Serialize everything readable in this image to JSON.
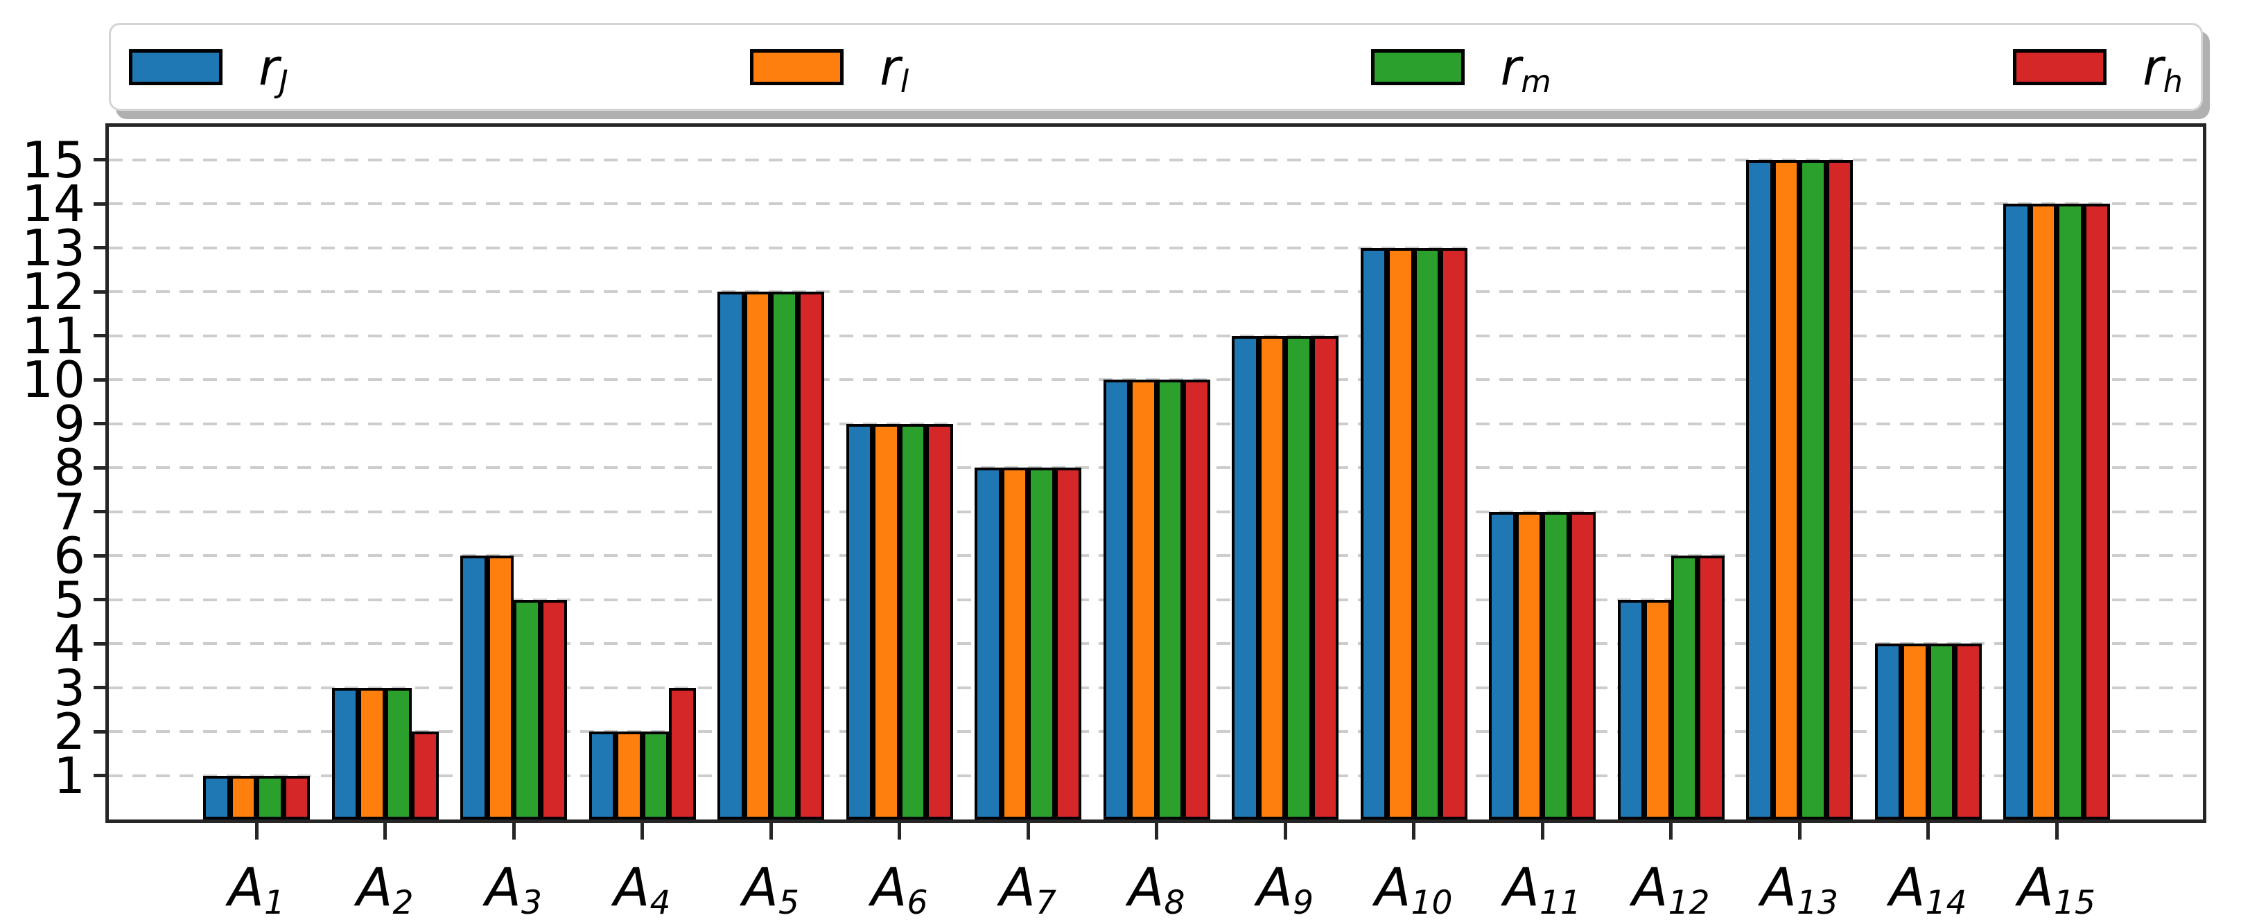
{
  "chart_data": {
    "type": "bar",
    "title": "",
    "xlabel": "",
    "ylabel": "",
    "categories": [
      "A_1",
      "A_2",
      "A_3",
      "A_4",
      "A_5",
      "A_6",
      "A_7",
      "A_8",
      "A_9",
      "A_10",
      "A_11",
      "A_12",
      "A_13",
      "A_14",
      "A_15"
    ],
    "series": [
      {
        "name": "r_J",
        "color": "#1f77b4",
        "values": [
          1,
          3,
          6,
          2,
          12,
          9,
          8,
          10,
          11,
          13,
          7,
          5,
          15,
          4,
          14
        ]
      },
      {
        "name": "r_l",
        "color": "#ff7f0e",
        "values": [
          1,
          3,
          6,
          2,
          12,
          9,
          8,
          10,
          11,
          13,
          7,
          5,
          15,
          4,
          14
        ]
      },
      {
        "name": "r_m",
        "color": "#2ca02c",
        "values": [
          1,
          3,
          5,
          2,
          12,
          9,
          8,
          10,
          11,
          13,
          7,
          6,
          15,
          4,
          14
        ]
      },
      {
        "name": "r_h",
        "color": "#d62728",
        "values": [
          1,
          2,
          5,
          3,
          12,
          9,
          8,
          10,
          11,
          13,
          7,
          6,
          15,
          4,
          14
        ]
      }
    ],
    "y_ticks": [
      1,
      2,
      3,
      4,
      5,
      6,
      7,
      8,
      9,
      10,
      11,
      12,
      13,
      14,
      15
    ],
    "ylim": [
      0,
      15.75
    ],
    "grid": {
      "axis": "y",
      "style": "dashed",
      "color": "#cdcdcd"
    },
    "legend": {
      "position": "top",
      "mode": "expand",
      "entries": [
        "r_J",
        "r_l",
        "r_m",
        "r_h"
      ]
    },
    "bar_edge_color": "#000000",
    "spine_color": "#262626",
    "background_color": "#ffffff"
  }
}
